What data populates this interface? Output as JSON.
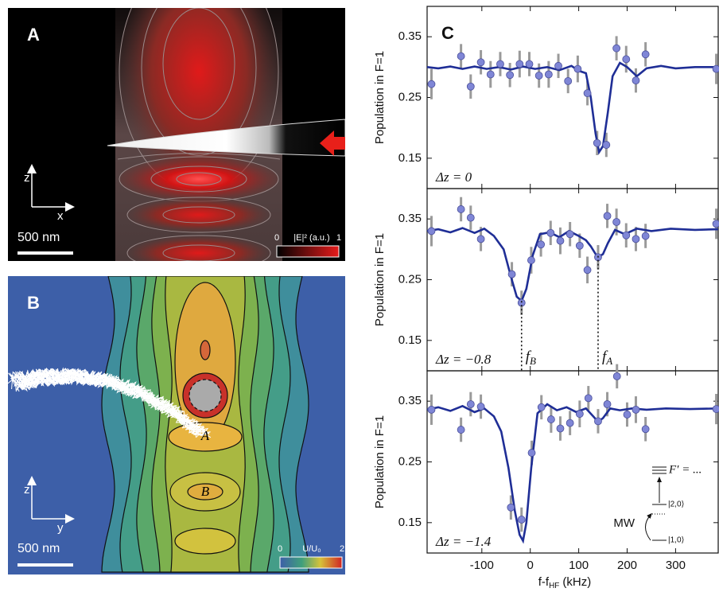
{
  "panel_a": {
    "label": "A",
    "axis_vertical": "z",
    "axis_horizontal": "x",
    "scale_bar": "500 nm",
    "colorbar": {
      "title": "|E|² (a.u.)",
      "ticks": [
        0,
        1
      ]
    }
  },
  "panel_b": {
    "label": "B",
    "axis_vertical": "z",
    "axis_horizontal": "y",
    "scale_bar": "500 nm",
    "site_a": "A",
    "site_b": "B",
    "colorbar": {
      "title": "U/U₀",
      "ticks": [
        0,
        2
      ]
    }
  },
  "panel_c_label": "C",
  "chart_data": [
    {
      "type": "scatter",
      "ylabel": "Population in F=1",
      "annotation": "Δz = 0",
      "xlim": [
        -213,
        388
      ],
      "xticks": [
        -100,
        0,
        100,
        200,
        300
      ],
      "ylim": [
        0.1,
        0.4
      ],
      "yticks": [
        0.15,
        0.25,
        0.35
      ],
      "point_color": "#7f86d6",
      "error_color": "#9a9a9a",
      "fit_color": "#1f2e96",
      "points": {
        "x": [
          -204,
          -143,
          -123,
          -102,
          -82,
          -62,
          -42,
          -22,
          -2,
          18,
          38,
          58,
          78,
          98,
          118,
          138,
          157,
          178,
          198,
          218,
          238,
          384
        ],
        "values": [
          0.272,
          0.318,
          0.268,
          0.308,
          0.288,
          0.305,
          0.287,
          0.305,
          0.305,
          0.286,
          0.288,
          0.302,
          0.277,
          0.297,
          0.257,
          0.175,
          0.172,
          0.331,
          0.313,
          0.278,
          0.321,
          0.297
        ],
        "errors": [
          0.025,
          0.02,
          0.02,
          0.02,
          0.022,
          0.02,
          0.02,
          0.022,
          0.02,
          0.02,
          0.022,
          0.02,
          0.02,
          0.022,
          0.02,
          0.02,
          0.02,
          0.02,
          0.022,
          0.02,
          0.02,
          0.025
        ]
      },
      "fit": {
        "x": [
          -213,
          -190,
          -165,
          -140,
          -115,
          -90,
          -65,
          -40,
          -15,
          10,
          35,
          60,
          85,
          100,
          115,
          125,
          135,
          142,
          150,
          160,
          170,
          185,
          200,
          220,
          240,
          270,
          300,
          340,
          388
        ],
        "values": [
          0.3,
          0.298,
          0.301,
          0.297,
          0.301,
          0.297,
          0.3,
          0.296,
          0.301,
          0.297,
          0.3,
          0.295,
          0.302,
          0.294,
          0.29,
          0.25,
          0.19,
          0.16,
          0.17,
          0.225,
          0.285,
          0.307,
          0.3,
          0.285,
          0.298,
          0.302,
          0.298,
          0.3,
          0.3
        ]
      }
    },
    {
      "type": "scatter",
      "ylabel": "Population in F=1",
      "annotation": "Δz = −0.8",
      "xlim": [
        -213,
        388
      ],
      "xticks": [
        -100,
        0,
        100,
        200,
        300
      ],
      "ylim": [
        0.1,
        0.4
      ],
      "yticks": [
        0.15,
        0.25,
        0.35
      ],
      "point_color": "#7f86d6",
      "error_color": "#9a9a9a",
      "fit_color": "#1f2e96",
      "points": {
        "x": [
          -204,
          -143,
          -123,
          -102,
          -38,
          -18,
          2,
          22,
          42,
          62,
          82,
          102,
          118,
          140,
          159,
          178,
          198,
          218,
          238,
          384
        ],
        "values": [
          0.33,
          0.366,
          0.352,
          0.317,
          0.259,
          0.212,
          0.282,
          0.308,
          0.327,
          0.314,
          0.325,
          0.306,
          0.266,
          0.287,
          0.355,
          0.345,
          0.323,
          0.317,
          0.322,
          0.342
        ],
        "errors": [
          0.025,
          0.02,
          0.02,
          0.02,
          0.02,
          0.02,
          0.022,
          0.02,
          0.02,
          0.022,
          0.02,
          0.02,
          0.022,
          0.02,
          0.02,
          0.022,
          0.02,
          0.02,
          0.02,
          0.025
        ]
      },
      "fit": {
        "x": [
          -213,
          -190,
          -165,
          -140,
          -115,
          -95,
          -75,
          -55,
          -40,
          -28,
          -18,
          -8,
          5,
          20,
          40,
          60,
          80,
          100,
          115,
          125,
          135,
          142,
          150,
          160,
          175,
          195,
          220,
          250,
          290,
          340,
          388
        ],
        "values": [
          0.33,
          0.333,
          0.328,
          0.335,
          0.327,
          0.334,
          0.322,
          0.3,
          0.255,
          0.222,
          0.215,
          0.235,
          0.29,
          0.325,
          0.328,
          0.32,
          0.33,
          0.322,
          0.315,
          0.305,
          0.292,
          0.288,
          0.292,
          0.31,
          0.332,
          0.325,
          0.334,
          0.33,
          0.334,
          0.332,
          0.333
        ]
      },
      "markers": [
        {
          "x": -18,
          "label": "f",
          "sub": "B"
        },
        {
          "x": 140,
          "label": "f",
          "sub": "A"
        }
      ]
    },
    {
      "type": "scatter",
      "ylabel": "Population in F=1",
      "annotation": "Δz = −1.4",
      "xlabel": {
        "text": "f-f",
        "sub": "HF",
        "unit": "(kHz)"
      },
      "xlim": [
        -213,
        388
      ],
      "xticks": [
        -100,
        0,
        100,
        200,
        300
      ],
      "ylim": [
        0.1,
        0.4
      ],
      "yticks": [
        0.15,
        0.25,
        0.35
      ],
      "point_color": "#7f86d6",
      "error_color": "#9a9a9a",
      "fit_color": "#1f2e96",
      "points": {
        "x": [
          -204,
          -143,
          -123,
          -102,
          -40,
          -18,
          3,
          23,
          43,
          62,
          82,
          102,
          120,
          140,
          159,
          179,
          200,
          218,
          238,
          384
        ],
        "values": [
          0.336,
          0.303,
          0.345,
          0.341,
          0.175,
          0.155,
          0.265,
          0.34,
          0.32,
          0.305,
          0.314,
          0.329,
          0.355,
          0.317,
          0.345,
          0.391,
          0.328,
          0.336,
          0.304,
          0.337
        ],
        "errors": [
          0.025,
          0.02,
          0.02,
          0.02,
          0.02,
          0.02,
          0.02,
          0.02,
          0.022,
          0.02,
          0.02,
          0.022,
          0.02,
          0.02,
          0.02,
          0.02,
          0.02,
          0.022,
          0.02,
          0.025
        ]
      },
      "fit": {
        "x": [
          -213,
          -190,
          -165,
          -140,
          -115,
          -95,
          -75,
          -60,
          -45,
          -32,
          -22,
          -15,
          -8,
          2,
          15,
          35,
          55,
          75,
          95,
          115,
          130,
          140,
          150,
          165,
          185,
          210,
          240,
          280,
          330,
          388
        ],
        "values": [
          0.336,
          0.34,
          0.334,
          0.342,
          0.332,
          0.338,
          0.325,
          0.3,
          0.24,
          0.17,
          0.13,
          0.12,
          0.15,
          0.24,
          0.33,
          0.345,
          0.335,
          0.34,
          0.332,
          0.338,
          0.325,
          0.316,
          0.322,
          0.338,
          0.335,
          0.338,
          0.336,
          0.338,
          0.337,
          0.338
        ]
      },
      "inset": {
        "excited": "F′ = ...",
        "upper": "|2,0⟩",
        "lower": "|1,0⟩",
        "drive": "MW"
      }
    }
  ]
}
